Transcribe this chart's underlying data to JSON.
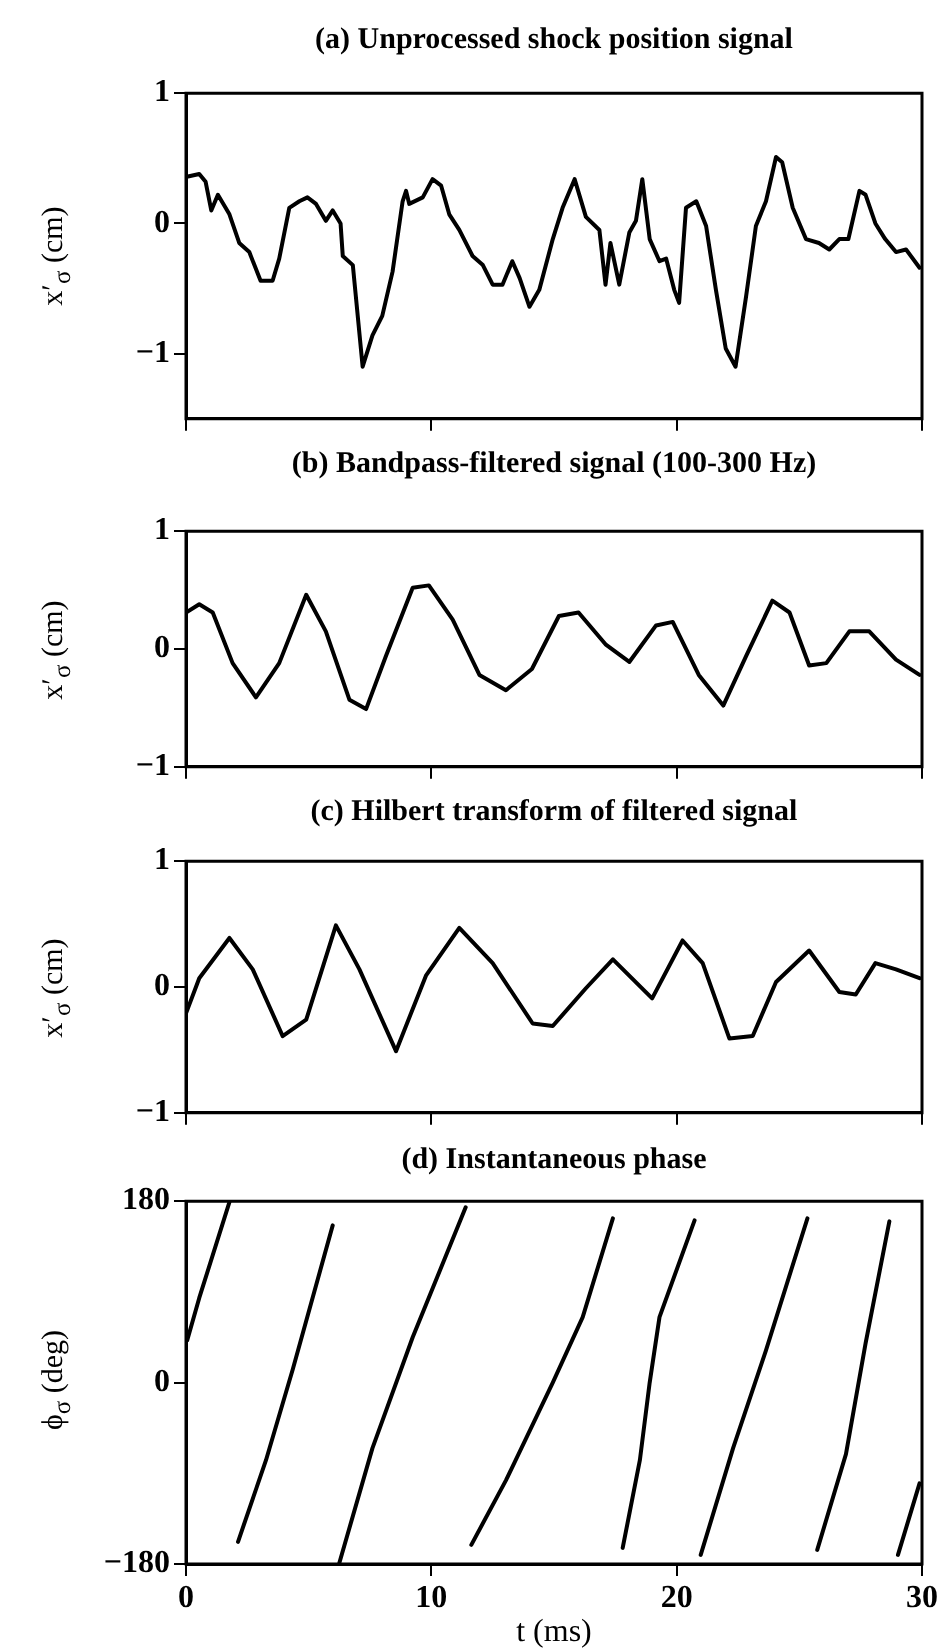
{
  "chart_data": [
    {
      "type": "line",
      "title": "(a) Unprocessed shock position signal",
      "ylabel": "x′$_{σ}$ (cm)",
      "color": "#000000",
      "marker": "none",
      "tick_labels": "y",
      "xlim": [
        0,
        30
      ],
      "xticks": [
        {
          "value": 0,
          "label": null
        },
        {
          "value": 10,
          "label": null
        },
        {
          "value": 20,
          "label": null
        },
        {
          "value": 30,
          "label": null
        }
      ],
      "ylim": [
        -1.5,
        1
      ],
      "yticks": [
        -1,
        0,
        1
      ],
      "x": [
        0.08,
        0.54,
        0.8,
        1.03,
        1.3,
        1.77,
        2.17,
        2.58,
        3.04,
        3.53,
        3.8,
        4.21,
        4.62,
        4.95,
        5.3,
        5.7,
        5.98,
        6.3,
        6.39,
        6.8,
        7.2,
        7.6,
        8.0,
        8.42,
        8.83,
        8.97,
        9.1,
        9.65,
        10.05,
        10.4,
        10.73,
        11.14,
        11.68,
        12.1,
        12.5,
        12.9,
        13.3,
        13.6,
        14.0,
        14.4,
        14.95,
        15.35,
        15.84,
        16.3,
        16.85,
        17.1,
        17.3,
        17.66,
        18.07,
        18.34,
        18.6,
        18.9,
        19.3,
        19.57,
        19.9,
        20.1,
        20.38,
        20.8,
        21.2,
        21.6,
        22.0,
        22.4,
        22.83,
        23.23,
        23.64,
        24.05,
        24.3,
        24.73,
        25.27,
        25.8,
        26.22,
        26.63,
        27.0,
        27.45,
        27.7,
        28.1,
        28.5,
        28.94,
        29.35,
        29.9
      ],
      "values": [
        0.36,
        0.38,
        0.32,
        0.1,
        0.22,
        0.07,
        -0.15,
        -0.22,
        -0.44,
        -0.44,
        -0.27,
        0.12,
        0.17,
        0.2,
        0.15,
        0.02,
        0.1,
        0,
        -0.25,
        -0.32,
        -1.1,
        -0.86,
        -0.71,
        -0.37,
        0.17,
        0.25,
        0.15,
        0.2,
        0.34,
        0.29,
        0.07,
        -0.05,
        -0.25,
        -0.32,
        -0.47,
        -0.47,
        -0.29,
        -0.42,
        -0.64,
        -0.51,
        -0.12,
        0.12,
        0.34,
        0.05,
        -0.05,
        -0.47,
        -0.15,
        -0.47,
        -0.07,
        0.02,
        0.34,
        -0.12,
        -0.29,
        -0.27,
        -0.51,
        -0.61,
        0.12,
        0.17,
        -0.02,
        -0.51,
        -0.96,
        -1.1,
        -0.56,
        -0.02,
        0.17,
        0.51,
        0.47,
        0.12,
        -0.12,
        -0.15,
        -0.2,
        -0.12,
        -0.12,
        0.25,
        0.22,
        0,
        -0.12,
        -0.22,
        -0.2,
        -0.34
      ]
    },
    {
      "type": "line",
      "title": "(b) Bandpass-filtered signal (100-300 Hz)",
      "ylabel": "x′$_{σ}$ (cm)",
      "color": "#000000",
      "marker": "none",
      "tick_labels": "y",
      "xlim": [
        0,
        30
      ],
      "xticks": [
        {
          "value": 0,
          "label": null
        },
        {
          "value": 10,
          "label": null
        },
        {
          "value": 20,
          "label": null
        },
        {
          "value": 30,
          "label": null
        }
      ],
      "ylim": [
        -1,
        1
      ],
      "yticks": [
        -1,
        0,
        1
      ],
      "x": [
        0,
        0.54,
        1.09,
        1.9,
        2.85,
        3.8,
        4.9,
        5.7,
        6.66,
        7.34,
        8.15,
        9.24,
        9.9,
        10.87,
        11.96,
        13.04,
        14.1,
        15.2,
        16.0,
        17.1,
        18.07,
        19.16,
        19.84,
        20.9,
        21.9,
        22.83,
        23.9,
        24.6,
        25.4,
        26.1,
        27.04,
        27.85,
        28.94,
        29.9
      ],
      "values": [
        0.31,
        0.38,
        0.31,
        -0.12,
        -0.41,
        -0.12,
        0.46,
        0.15,
        -0.43,
        -0.51,
        -0.06,
        0.52,
        0.54,
        0.25,
        -0.22,
        -0.35,
        -0.17,
        0.28,
        0.31,
        0.04,
        -0.11,
        0.2,
        0.23,
        -0.22,
        -0.48,
        -0.06,
        0.41,
        0.31,
        -0.14,
        -0.12,
        0.15,
        0.15,
        -0.09,
        -0.22
      ]
    },
    {
      "type": "line",
      "title": "(c) Hilbert transform of filtered signal",
      "ylabel": "x′$_{σ}$ (cm)",
      "color": "#000000",
      "marker": "none",
      "tick_labels": "y",
      "xlim": [
        0,
        30
      ],
      "xticks": [
        {
          "value": 0,
          "label": null
        },
        {
          "value": 10,
          "label": null
        },
        {
          "value": 20,
          "label": null
        },
        {
          "value": 30,
          "label": null
        }
      ],
      "ylim": [
        -1,
        1
      ],
      "yticks": [
        -1,
        0,
        1
      ],
      "x": [
        0,
        0.54,
        1.77,
        2.72,
        3.94,
        4.9,
        6.11,
        7.07,
        8.56,
        9.78,
        11.14,
        12.5,
        14.13,
        14.95,
        16.3,
        17.4,
        19.0,
        20.24,
        21.06,
        22.15,
        23.1,
        24.05,
        25.4,
        26.63,
        27.3,
        28.1,
        28.94,
        29.9
      ],
      "values": [
        -0.21,
        0.07,
        0.39,
        0.14,
        -0.39,
        -0.26,
        0.49,
        0.14,
        -0.51,
        0.09,
        0.47,
        0.19,
        -0.29,
        -0.31,
        -0.01,
        0.22,
        -0.09,
        0.37,
        0.19,
        -0.41,
        -0.39,
        0.04,
        0.29,
        -0.04,
        -0.06,
        0.19,
        0.14,
        0.07
      ]
    },
    {
      "type": "line",
      "title": "(d) Instantaneous phase",
      "ylabel": "ϕ$_{σ}$ (deg)",
      "xlabel": "t (ms)",
      "color": "#000000",
      "marker": "none",
      "xlim": [
        0,
        30
      ],
      "xticks": [
        0,
        10,
        20,
        30
      ],
      "ylim": [
        -180,
        180
      ],
      "yticks": [
        -180,
        0,
        180
      ],
      "x": [
        0.05,
        0.54,
        1.77,
        1.9,
        2.12,
        3.26,
        4.35,
        5.98,
        6.1,
        6.25,
        7.6,
        9.24,
        11.4,
        11.5,
        11.63,
        13.04,
        14.95,
        16.17,
        17.4,
        17.6,
        17.8,
        18.5,
        18.9,
        19.3,
        20.73,
        20.85,
        20.98,
        22.3,
        23.64,
        25.33,
        25.5,
        25.73,
        26.9,
        27.7,
        28.67,
        28.85,
        29.02,
        29.9
      ],
      "values": [
        42,
        84,
        179,
        null,
        -158,
        -77,
        13,
        156,
        null,
        -179,
        -65,
        45,
        174,
        null,
        -161,
        -97,
        0,
        65,
        163,
        null,
        -164,
        -77,
        0,
        65,
        161,
        null,
        -171,
        -65,
        32,
        163,
        null,
        -166,
        -71,
        39,
        160,
        null,
        -171,
        -100
      ]
    }
  ]
}
